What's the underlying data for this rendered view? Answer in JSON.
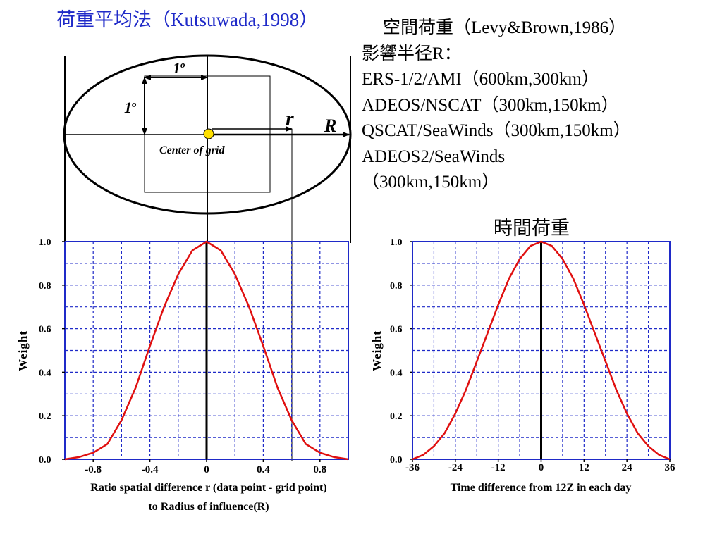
{
  "title": "荷重平均法（Kutsuwada,1998）",
  "info": {
    "heading": "空間荷重（Levy&Brown,1986）",
    "radius_label": "影響半径R：",
    "missions": [
      "ERS-1/2/AMI（600km,300km）",
      "ADEOS/NSCAT（300km,150km）",
      "QSCAT/SeaWinds（300km,150km）",
      "ADEOS2/SeaWinds",
      "（300km,150km）"
    ]
  },
  "diagram": {
    "one_degree_h": "1",
    "one_degree_v": "1",
    "degree_sup": "o",
    "r_label": "r",
    "R_label": "R",
    "center_label": "Center of grid",
    "center_color": "#ffe000"
  },
  "time_weight_title": "時間荷重",
  "chart_data": [
    {
      "type": "line",
      "title": "",
      "xlabel": "Ratio spatial difference r (data point - grid point)",
      "xlabel2": "to Radius of influence(R)",
      "ylabel": "Weight",
      "xlim": [
        -1.0,
        1.0
      ],
      "ylim": [
        0,
        1.0
      ],
      "x_tick_labels": [
        "-0.8",
        "-0.4",
        "0",
        "0.4",
        "0.8"
      ],
      "x_tick_values": [
        -0.8,
        -0.4,
        0,
        0.4,
        0.8
      ],
      "y_tick_labels": [
        "1.0",
        "0.8",
        "0.6",
        "0.4",
        "0.2",
        "0.0"
      ],
      "y_tick_values": [
        1.0,
        0.8,
        0.6,
        0.4,
        0.2,
        0.0
      ],
      "grid": true,
      "line_color": "#e01010",
      "x": [
        -1.0,
        -0.9,
        -0.8,
        -0.7,
        -0.6,
        -0.5,
        -0.4,
        -0.3,
        -0.2,
        -0.1,
        0,
        0.1,
        0.2,
        0.3,
        0.4,
        0.5,
        0.6,
        0.7,
        0.8,
        0.9,
        1.0
      ],
      "y": [
        0.0,
        0.01,
        0.03,
        0.07,
        0.18,
        0.33,
        0.52,
        0.7,
        0.85,
        0.96,
        1.0,
        0.96,
        0.85,
        0.7,
        0.52,
        0.33,
        0.18,
        0.07,
        0.03,
        0.01,
        0.0
      ]
    },
    {
      "type": "line",
      "title": "",
      "xlabel": "Time difference from 12Z in each day",
      "ylabel": "Weight",
      "xlim": [
        -36,
        36
      ],
      "ylim": [
        0,
        1.0
      ],
      "x_tick_labels": [
        "-36",
        "-24",
        "-12",
        "0",
        "12",
        "24",
        "36"
      ],
      "x_tick_values": [
        -36,
        -24,
        -12,
        0,
        12,
        24,
        36
      ],
      "y_tick_labels": [
        "1.0",
        "0.8",
        "0.6",
        "0.4",
        "0.2",
        "0.0"
      ],
      "y_tick_values": [
        1.0,
        0.8,
        0.6,
        0.4,
        0.2,
        0.0
      ],
      "grid": true,
      "line_color": "#e01010",
      "x": [
        -36,
        -33,
        -30,
        -27,
        -24,
        -21,
        -18,
        -15,
        -12,
        -9,
        -6,
        -3,
        0,
        3,
        6,
        9,
        12,
        15,
        18,
        21,
        24,
        27,
        30,
        33,
        36
      ],
      "y": [
        0.0,
        0.02,
        0.06,
        0.12,
        0.21,
        0.32,
        0.45,
        0.58,
        0.71,
        0.83,
        0.92,
        0.98,
        1.0,
        0.98,
        0.92,
        0.83,
        0.71,
        0.58,
        0.45,
        0.32,
        0.21,
        0.12,
        0.06,
        0.02,
        0.0
      ]
    }
  ]
}
